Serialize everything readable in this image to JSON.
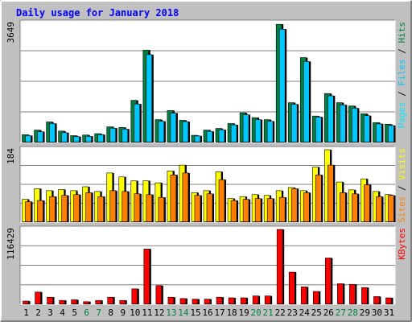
{
  "title": "Daily usage for January 2018",
  "colors": {
    "background": "#c0c0c0",
    "plot_bg": "#ffffff",
    "title": "#0000ff",
    "hits": "#008040",
    "files": "#00c8ff",
    "pages": "#00e8ff",
    "visits": "#ffff00",
    "sites": "#ff8000",
    "kbytes": "#ff0000",
    "weekend": "#008040",
    "weekday": "#000000",
    "slash": "#000000"
  },
  "chart_data": [
    {
      "type": "bar",
      "panel": "top",
      "categories": [
        "1",
        "2",
        "3",
        "4",
        "5",
        "6",
        "7",
        "8",
        "9",
        "10",
        "11",
        "12",
        "13",
        "14",
        "15",
        "16",
        "17",
        "18",
        "19",
        "20",
        "21",
        "22",
        "23",
        "24",
        "25",
        "26",
        "27",
        "28",
        "29",
        "30",
        "31"
      ],
      "ymax_label": "3649",
      "ylim": [
        0,
        3649
      ],
      "legend": [
        {
          "text": "Pages",
          "color_key": "pages"
        },
        {
          "text": " / ",
          "color_key": "slash"
        },
        {
          "text": "Files",
          "color_key": "files"
        },
        {
          "text": " / ",
          "color_key": "slash"
        },
        {
          "text": "Hits",
          "color_key": "hits"
        }
      ],
      "series": [
        {
          "name": "Hits",
          "color_key": "hits",
          "values": [
            240,
            380,
            630,
            350,
            210,
            230,
            270,
            480,
            460,
            1290,
            2830,
            700,
            980,
            680,
            220,
            380,
            430,
            580,
            910,
            760,
            700,
            3620,
            1220,
            2600,
            810,
            1500,
            1220,
            1120,
            880,
            610,
            560
          ]
        },
        {
          "name": "Files",
          "color_key": "files",
          "values": [
            210,
            330,
            580,
            300,
            180,
            190,
            240,
            440,
            410,
            1180,
            2690,
            650,
            900,
            640,
            200,
            340,
            390,
            540,
            850,
            700,
            650,
            3470,
            1170,
            2480,
            780,
            1430,
            1150,
            1050,
            820,
            570,
            520
          ]
        }
      ]
    },
    {
      "type": "bar",
      "panel": "middle",
      "categories": [
        "1",
        "2",
        "3",
        "4",
        "5",
        "6",
        "7",
        "8",
        "9",
        "10",
        "11",
        "12",
        "13",
        "14",
        "15",
        "16",
        "17",
        "18",
        "19",
        "20",
        "21",
        "22",
        "23",
        "24",
        "25",
        "26",
        "27",
        "28",
        "29",
        "30",
        "31"
      ],
      "ymax_label": "184",
      "ylim": [
        0,
        184
      ],
      "legend": [
        {
          "text": "Sites",
          "color_key": "sites"
        },
        {
          "text": " / ",
          "color_key": "slash"
        },
        {
          "text": "Visits",
          "color_key": "visits"
        }
      ],
      "series": [
        {
          "name": "Visits",
          "color_key": "visits",
          "values": [
            58,
            85,
            80,
            83,
            80,
            90,
            78,
            125,
            115,
            105,
            105,
            100,
            130,
            145,
            75,
            80,
            128,
            60,
            65,
            70,
            68,
            80,
            88,
            80,
            140,
            184,
            102,
            82,
            110,
            78,
            70
          ]
        },
        {
          "name": "Sites",
          "color_key": "sites",
          "values": [
            52,
            55,
            65,
            68,
            70,
            75,
            65,
            80,
            78,
            72,
            70,
            63,
            120,
            125,
            68,
            72,
            108,
            55,
            58,
            60,
            60,
            63,
            85,
            75,
            120,
            145,
            75,
            72,
            95,
            65,
            68
          ]
        }
      ]
    },
    {
      "type": "bar",
      "panel": "bottom",
      "categories": [
        "1",
        "2",
        "3",
        "4",
        "5",
        "6",
        "7",
        "8",
        "9",
        "10",
        "11",
        "12",
        "13",
        "14",
        "15",
        "16",
        "17",
        "18",
        "19",
        "20",
        "21",
        "22",
        "23",
        "24",
        "25",
        "26",
        "27",
        "28",
        "29",
        "30",
        "31"
      ],
      "ymax_label": "116429",
      "ylim": [
        0,
        116429
      ],
      "legend": [
        {
          "text": "KBytes",
          "color_key": "kbytes"
        }
      ],
      "series": [
        {
          "name": "KBytes",
          "color_key": "kbytes",
          "values": [
            5000,
            19000,
            11000,
            6000,
            7000,
            4000,
            6000,
            11000,
            6000,
            24000,
            86000,
            29000,
            11000,
            9000,
            8000,
            8000,
            11000,
            10000,
            10000,
            13000,
            13000,
            116429,
            50000,
            27000,
            20000,
            72000,
            32000,
            31000,
            26000,
            12000,
            10000
          ]
        }
      ]
    }
  ],
  "x_labels": [
    {
      "day": "1",
      "weekend": false
    },
    {
      "day": "2",
      "weekend": false
    },
    {
      "day": "3",
      "weekend": false
    },
    {
      "day": "4",
      "weekend": false
    },
    {
      "day": "5",
      "weekend": false
    },
    {
      "day": "6",
      "weekend": true
    },
    {
      "day": "7",
      "weekend": true
    },
    {
      "day": "8",
      "weekend": false
    },
    {
      "day": "9",
      "weekend": false
    },
    {
      "day": "10",
      "weekend": false
    },
    {
      "day": "11",
      "weekend": false
    },
    {
      "day": "12",
      "weekend": false
    },
    {
      "day": "13",
      "weekend": true
    },
    {
      "day": "14",
      "weekend": true
    },
    {
      "day": "15",
      "weekend": false
    },
    {
      "day": "16",
      "weekend": false
    },
    {
      "day": "17",
      "weekend": false
    },
    {
      "day": "18",
      "weekend": false
    },
    {
      "day": "19",
      "weekend": false
    },
    {
      "day": "20",
      "weekend": true
    },
    {
      "day": "21",
      "weekend": true
    },
    {
      "day": "22",
      "weekend": false
    },
    {
      "day": "23",
      "weekend": false
    },
    {
      "day": "24",
      "weekend": false
    },
    {
      "day": "25",
      "weekend": false
    },
    {
      "day": "26",
      "weekend": false
    },
    {
      "day": "27",
      "weekend": true
    },
    {
      "day": "28",
      "weekend": true
    },
    {
      "day": "29",
      "weekend": false
    },
    {
      "day": "30",
      "weekend": false
    },
    {
      "day": "31",
      "weekend": false
    }
  ]
}
